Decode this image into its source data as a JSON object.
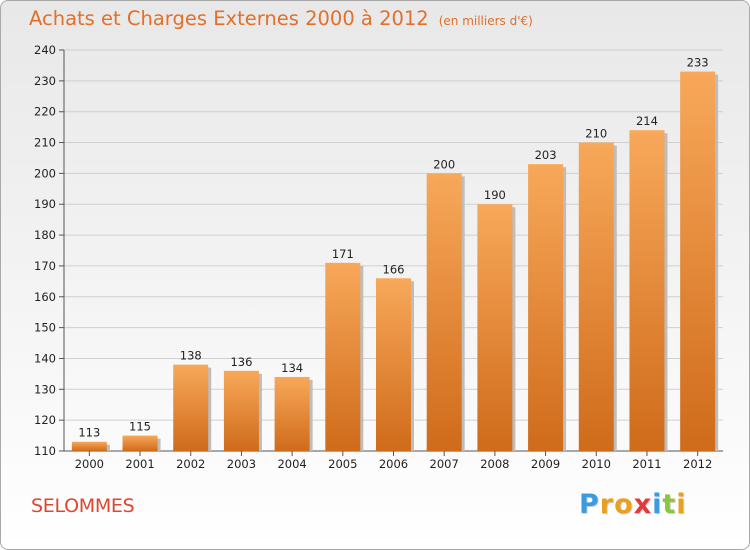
{
  "header": {
    "title": "Achats et Charges Externes 2000 à 2012",
    "unit": "(en milliers d'€)"
  },
  "footer": {
    "commune": "SELOMMES",
    "logo_letters": [
      "P",
      "r",
      "o",
      "x",
      "i",
      "t",
      "i"
    ],
    "logo_colors": [
      "#3a9be0",
      "#e8a020",
      "#e8a020",
      "#e03a3a",
      "#3a9be0",
      "#8cc63f",
      "#e8a020"
    ]
  },
  "colors": {
    "title": "#e0702a",
    "bar_top": "#f8a85a",
    "bar_bottom": "#cf6b1a",
    "bar_shadow": "#bdbdbd",
    "grid": "#cfcfcf"
  },
  "chart_data": {
    "type": "bar",
    "categories": [
      "2000",
      "2001",
      "2002",
      "2003",
      "2004",
      "2005",
      "2006",
      "2007",
      "2008",
      "2009",
      "2010",
      "2011",
      "2012"
    ],
    "values": [
      113,
      115,
      138,
      136,
      134,
      171,
      166,
      200,
      190,
      203,
      210,
      214,
      233
    ],
    "yticks": [
      110,
      120,
      130,
      140,
      150,
      160,
      170,
      180,
      190,
      200,
      210,
      220,
      230,
      240
    ],
    "ylim": [
      110,
      240
    ],
    "grid": true,
    "legend": "none"
  }
}
